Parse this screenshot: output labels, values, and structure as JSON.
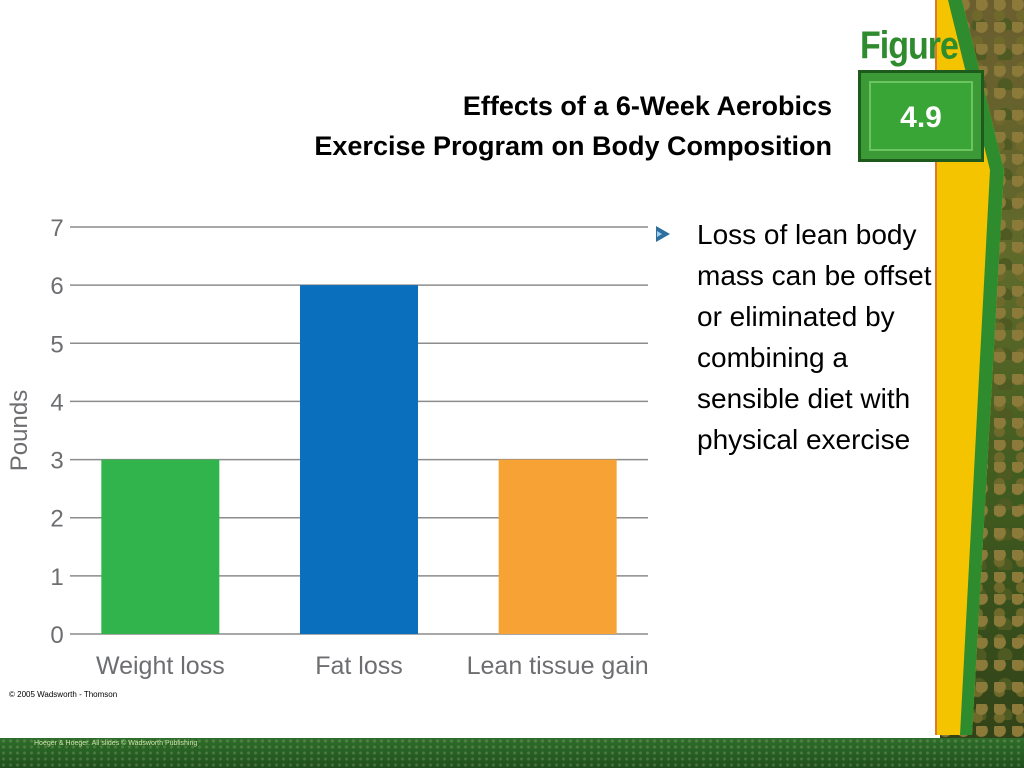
{
  "slide": {
    "title_line1": "Effects of a 6-Week Aerobics",
    "title_line2": "Exercise Program on Body Composition",
    "figure_label": "Figure",
    "figure_number": "4.9",
    "bullet_text": "Loss of lean body mass can be offset or eliminated by combining a sensible diet with physical exercise",
    "copyright": "© 2005 Wadsworth - Thomson",
    "footer": "Hoeger & Hoeger. All slides © Wadsworth Publishing"
  },
  "colors": {
    "green_bar": "#31b44b",
    "blue_bar": "#0a6fbd",
    "orange_bar": "#f7a234",
    "accent_green": "#2e8b2e",
    "accent_yellow": "#f5c400"
  },
  "chart_data": {
    "type": "bar",
    "categories": [
      "Weight loss",
      "Fat loss",
      "Lean tissue gain"
    ],
    "values": [
      3,
      6,
      3
    ],
    "bar_colors": [
      "#31b44b",
      "#0a6fbd",
      "#f7a234"
    ],
    "title": "",
    "xlabel": "",
    "ylabel": "Pounds",
    "ylim": [
      0,
      7
    ],
    "yticks": [
      0,
      1,
      2,
      3,
      4,
      5,
      6,
      7
    ],
    "grid": true,
    "legend": "none"
  }
}
